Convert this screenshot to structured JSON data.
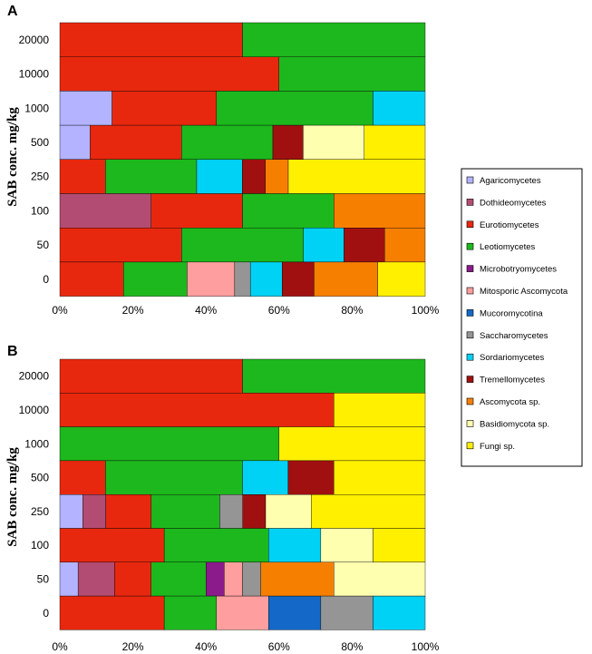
{
  "chart_data": [
    {
      "type": "bar",
      "orientation": "horizontal",
      "stacked": "percent",
      "panel_label": "A",
      "ylabel": "SAB conc. mg/kg",
      "categories": [
        "20000",
        "10000",
        "1000",
        "500",
        "250",
        "100",
        "50",
        "0"
      ],
      "x_ticks": [
        "0%",
        "20%",
        "40%",
        "60%",
        "80%",
        "100%"
      ],
      "xlim": [
        0,
        100
      ],
      "series": [
        {
          "name": "Agaricomycetes",
          "values": [
            0,
            0,
            14.3,
            8.3,
            0,
            0,
            0,
            0
          ]
        },
        {
          "name": "Dothideomycetes",
          "values": [
            0,
            0,
            0,
            0,
            0,
            25,
            0,
            0
          ]
        },
        {
          "name": "Eurotiomycetes",
          "values": [
            50,
            60,
            28.6,
            25,
            12.5,
            25,
            33.3,
            17.4
          ]
        },
        {
          "name": "Leotiomycetes",
          "values": [
            50,
            40,
            42.9,
            25,
            25,
            25,
            33.3,
            17.4
          ]
        },
        {
          "name": "Microbotryomycetes",
          "values": [
            0,
            0,
            0,
            0,
            0,
            0,
            0,
            0
          ]
        },
        {
          "name": "Mitosporic Ascomycota",
          "values": [
            0,
            0,
            0,
            0,
            0,
            0,
            0,
            13
          ]
        },
        {
          "name": "Mucoromycotina",
          "values": [
            0,
            0,
            0,
            0,
            0,
            0,
            0,
            0
          ]
        },
        {
          "name": "Saccharomycetes",
          "values": [
            0,
            0,
            0,
            0,
            0,
            0,
            0,
            4.3
          ]
        },
        {
          "name": "Sordariomycetes",
          "values": [
            0,
            0,
            14.3,
            0,
            12.5,
            0,
            11.1,
            8.7
          ]
        },
        {
          "name": "Tremellomycetes",
          "values": [
            0,
            0,
            0,
            8.3,
            6.3,
            0,
            11.1,
            8.7
          ]
        },
        {
          "name": "Ascomycota sp.",
          "values": [
            0,
            0,
            0,
            0,
            6.3,
            25,
            11.1,
            17.4
          ]
        },
        {
          "name": "Basidiomycota sp.",
          "values": [
            0,
            0,
            0,
            16.7,
            0,
            0,
            0,
            0
          ]
        },
        {
          "name": "Fungi sp.",
          "values": [
            0,
            0,
            0,
            16.7,
            37.5,
            0,
            0,
            13
          ]
        }
      ]
    },
    {
      "type": "bar",
      "orientation": "horizontal",
      "stacked": "percent",
      "panel_label": "B",
      "ylabel": "SAB conc. mg/kg",
      "categories": [
        "20000",
        "10000",
        "1000",
        "500",
        "250",
        "100",
        "50",
        "0"
      ],
      "x_ticks": [
        "0%",
        "20%",
        "40%",
        "60%",
        "80%",
        "100%"
      ],
      "xlim": [
        0,
        100
      ],
      "series": [
        {
          "name": "Agaricomycetes",
          "values": [
            0,
            0,
            0,
            0,
            6.3,
            0,
            5,
            0
          ]
        },
        {
          "name": "Dothideomycetes",
          "values": [
            0,
            0,
            0,
            0,
            6.3,
            0,
            10,
            0
          ]
        },
        {
          "name": "Eurotiomycetes",
          "values": [
            50,
            75,
            0,
            12.5,
            12.5,
            28.6,
            10,
            28.6
          ]
        },
        {
          "name": "Leotiomycetes",
          "values": [
            50,
            0,
            60,
            37.5,
            18.8,
            28.6,
            15,
            14.3
          ]
        },
        {
          "name": "Microbotryomycetes",
          "values": [
            0,
            0,
            0,
            0,
            0,
            0,
            5,
            0
          ]
        },
        {
          "name": "Mitosporic Ascomycota",
          "values": [
            0,
            0,
            0,
            0,
            0,
            0,
            5,
            14.3
          ]
        },
        {
          "name": "Mucoromycotina",
          "values": [
            0,
            0,
            0,
            0,
            0,
            0,
            0,
            14.3
          ]
        },
        {
          "name": "Saccharomycetes",
          "values": [
            0,
            0,
            0,
            0,
            6.3,
            0,
            5,
            14.3
          ]
        },
        {
          "name": "Sordariomycetes",
          "values": [
            0,
            0,
            0,
            12.5,
            0,
            14.3,
            0,
            14.3
          ]
        },
        {
          "name": "Tremellomycetes",
          "values": [
            0,
            0,
            0,
            12.5,
            6.3,
            0,
            0,
            0
          ]
        },
        {
          "name": "Ascomycota sp.",
          "values": [
            0,
            0,
            0,
            0,
            0,
            0,
            20,
            0
          ]
        },
        {
          "name": "Basidiomycota sp.",
          "values": [
            0,
            0,
            0,
            0,
            12.5,
            14.3,
            25,
            0
          ]
        },
        {
          "name": "Fungi sp.",
          "values": [
            0,
            25,
            40,
            25,
            31.3,
            14.3,
            0,
            0
          ]
        }
      ]
    }
  ],
  "legend": {
    "placement": "right",
    "entries": [
      {
        "name": "Agaricomycetes",
        "color": "#B3B3FF"
      },
      {
        "name": "Dothideomycetes",
        "color": "#B24C73"
      },
      {
        "name": "Eurotiomycetes",
        "color": "#E8280E"
      },
      {
        "name": "Leotiomycetes",
        "color": "#1DB81D"
      },
      {
        "name": "Microbotryomycetes",
        "color": "#8B1A8B"
      },
      {
        "name": "Mitosporic Ascomycota",
        "color": "#FF9E9E"
      },
      {
        "name": "Mucoromycotina",
        "color": "#1469C8"
      },
      {
        "name": "Saccharomycetes",
        "color": "#959595"
      },
      {
        "name": "Sordariomycetes",
        "color": "#00D2F5"
      },
      {
        "name": "Tremellomycetes",
        "color": "#A01010"
      },
      {
        "name": "Ascomycota sp.",
        "color": "#F77F00"
      },
      {
        "name": "Basidiomycota sp.",
        "color": "#FFFFB0"
      },
      {
        "name": "Fungi sp.",
        "color": "#FFF000"
      }
    ]
  }
}
